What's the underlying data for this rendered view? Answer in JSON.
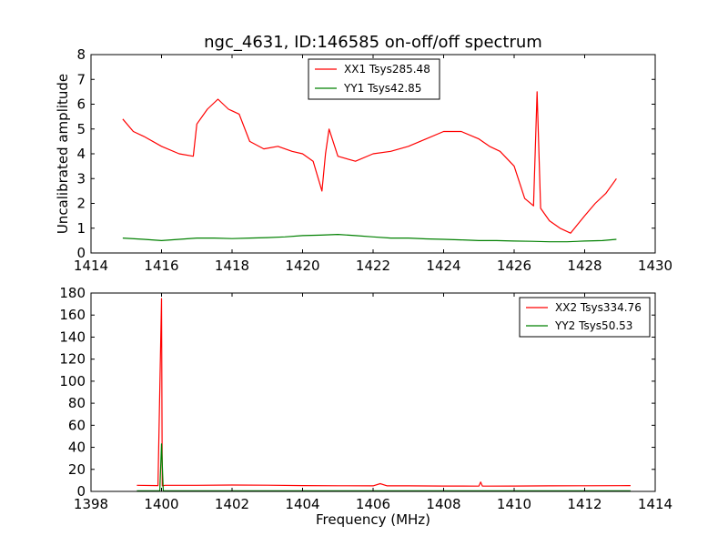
{
  "chart_data": [
    {
      "type": "line",
      "title": "ngc_4631, ID:146585 on-off/off spectrum",
      "xlabel": "",
      "ylabel": "Uncalibrated amplitude",
      "xlim": [
        1414,
        1430
      ],
      "ylim": [
        0,
        8
      ],
      "xticks": [
        "1414",
        "1416",
        "1418",
        "1420",
        "1422",
        "1424",
        "1426",
        "1428",
        "1430"
      ],
      "yticks": [
        "0",
        "1",
        "2",
        "3",
        "4",
        "5",
        "6",
        "7",
        "8"
      ],
      "legend_position": "top-center",
      "series": [
        {
          "name": "XX1 Tsys285.48",
          "color": "#ff0000",
          "x": [
            1414.9,
            1415.2,
            1415.5,
            1416.0,
            1416.5,
            1416.9,
            1417.0,
            1417.3,
            1417.6,
            1417.9,
            1418.2,
            1418.5,
            1418.9,
            1419.3,
            1419.7,
            1420.0,
            1420.3,
            1420.55,
            1420.65,
            1420.75,
            1421.0,
            1421.5,
            1422.0,
            1422.5,
            1423.0,
            1423.5,
            1424.0,
            1424.5,
            1425.0,
            1425.3,
            1425.6,
            1426.0,
            1426.3,
            1426.55,
            1426.65,
            1426.75,
            1427.0,
            1427.3,
            1427.6,
            1428.0,
            1428.3,
            1428.6,
            1428.9
          ],
          "values": [
            5.4,
            4.9,
            4.7,
            4.3,
            4.0,
            3.9,
            5.2,
            5.8,
            6.2,
            5.8,
            5.6,
            4.5,
            4.2,
            4.3,
            4.1,
            4.0,
            3.7,
            2.5,
            4.0,
            5.0,
            3.9,
            3.7,
            4.0,
            4.1,
            4.3,
            4.6,
            4.9,
            4.9,
            4.6,
            4.3,
            4.1,
            3.5,
            2.2,
            1.9,
            6.5,
            1.8,
            1.3,
            1.0,
            0.8,
            1.5,
            2.0,
            2.4,
            3.0
          ]
        },
        {
          "name": "YY1 Tsys42.85",
          "color": "#008000",
          "x": [
            1414.9,
            1415.5,
            1416.0,
            1416.5,
            1417.0,
            1417.5,
            1418.0,
            1418.5,
            1419.0,
            1419.5,
            1420.0,
            1420.5,
            1421.0,
            1421.5,
            1422.0,
            1422.5,
            1423.0,
            1423.5,
            1424.0,
            1424.5,
            1425.0,
            1425.5,
            1426.0,
            1426.5,
            1427.0,
            1427.5,
            1428.0,
            1428.5,
            1428.9
          ],
          "values": [
            0.6,
            0.55,
            0.5,
            0.55,
            0.6,
            0.6,
            0.58,
            0.6,
            0.62,
            0.65,
            0.7,
            0.72,
            0.75,
            0.7,
            0.65,
            0.6,
            0.6,
            0.57,
            0.55,
            0.53,
            0.5,
            0.5,
            0.48,
            0.47,
            0.45,
            0.45,
            0.48,
            0.5,
            0.55
          ]
        }
      ]
    },
    {
      "type": "line",
      "title": "",
      "xlabel": "Frequency (MHz)",
      "ylabel": "",
      "xlim": [
        1398,
        1414
      ],
      "ylim": [
        0,
        180
      ],
      "xticks": [
        "1398",
        "1400",
        "1402",
        "1404",
        "1406",
        "1408",
        "1410",
        "1412",
        "1414"
      ],
      "yticks": [
        "0",
        "20",
        "40",
        "60",
        "80",
        "100",
        "120",
        "140",
        "160",
        "180"
      ],
      "legend_position": "top-right",
      "series": [
        {
          "name": "XX2 Tsys334.76",
          "color": "#ff0000",
          "x": [
            1399.3,
            1399.9,
            1400.0,
            1400.02,
            1400.1,
            1401.0,
            1402.0,
            1403.0,
            1404.0,
            1405.0,
            1406.0,
            1406.2,
            1406.4,
            1407.0,
            1408.0,
            1409.0,
            1409.05,
            1409.1,
            1410.0,
            1411.0,
            1412.0,
            1413.0,
            1413.3
          ],
          "values": [
            5.5,
            5.3,
            175,
            5.0,
            5.5,
            5.5,
            5.8,
            5.6,
            5.3,
            5.1,
            5.0,
            7.0,
            5.0,
            5.0,
            4.9,
            4.8,
            8.5,
            4.8,
            4.9,
            5.0,
            5.1,
            5.2,
            5.3
          ]
        },
        {
          "name": "YY2 Tsys50.53",
          "color": "#008000",
          "x": [
            1399.3,
            1399.95,
            1400.0,
            1400.05,
            1401.0,
            1403.0,
            1405.0,
            1407.0,
            1409.0,
            1411.0,
            1413.3
          ],
          "values": [
            0.6,
            0.6,
            43,
            0.6,
            0.6,
            0.6,
            0.6,
            0.6,
            0.6,
            0.6,
            0.6
          ]
        }
      ]
    }
  ]
}
